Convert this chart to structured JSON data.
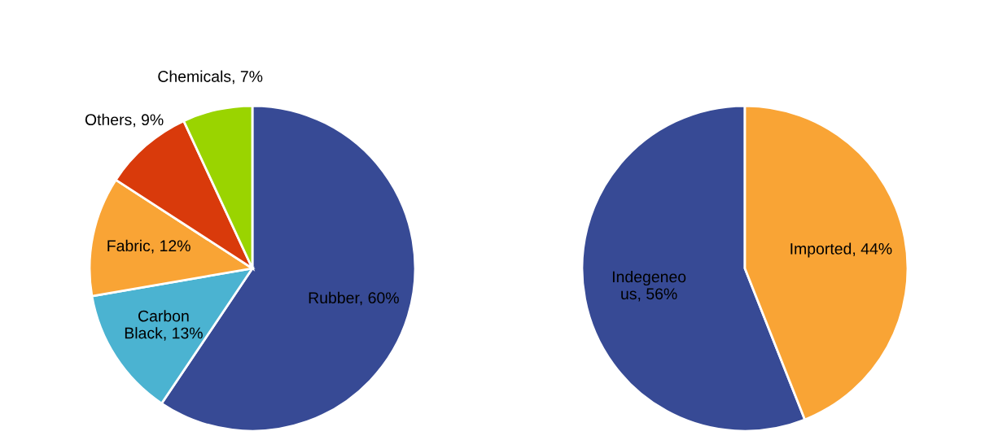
{
  "chart_data": [
    {
      "type": "pie",
      "categories": [
        "Rubber",
        "Carbon\nBlack",
        "Fabric",
        "Others",
        "Chemicals"
      ],
      "values": [
        60,
        13,
        12,
        9,
        7
      ],
      "colors": [
        "#374a95",
        "#4bb3d1",
        "#f9a435",
        "#d93a0b",
        "#9ad400"
      ],
      "value_labels": [
        "60%",
        "13%",
        "12%",
        "9%",
        "7%"
      ],
      "legend": false
    },
    {
      "type": "pie",
      "categories": [
        "Indegeneo\nus",
        "Imported"
      ],
      "values": [
        56,
        44
      ],
      "colors": [
        "#374a95",
        "#f9a435"
      ],
      "value_labels": [
        "56%",
        "44%"
      ],
      "legend": false
    }
  ]
}
